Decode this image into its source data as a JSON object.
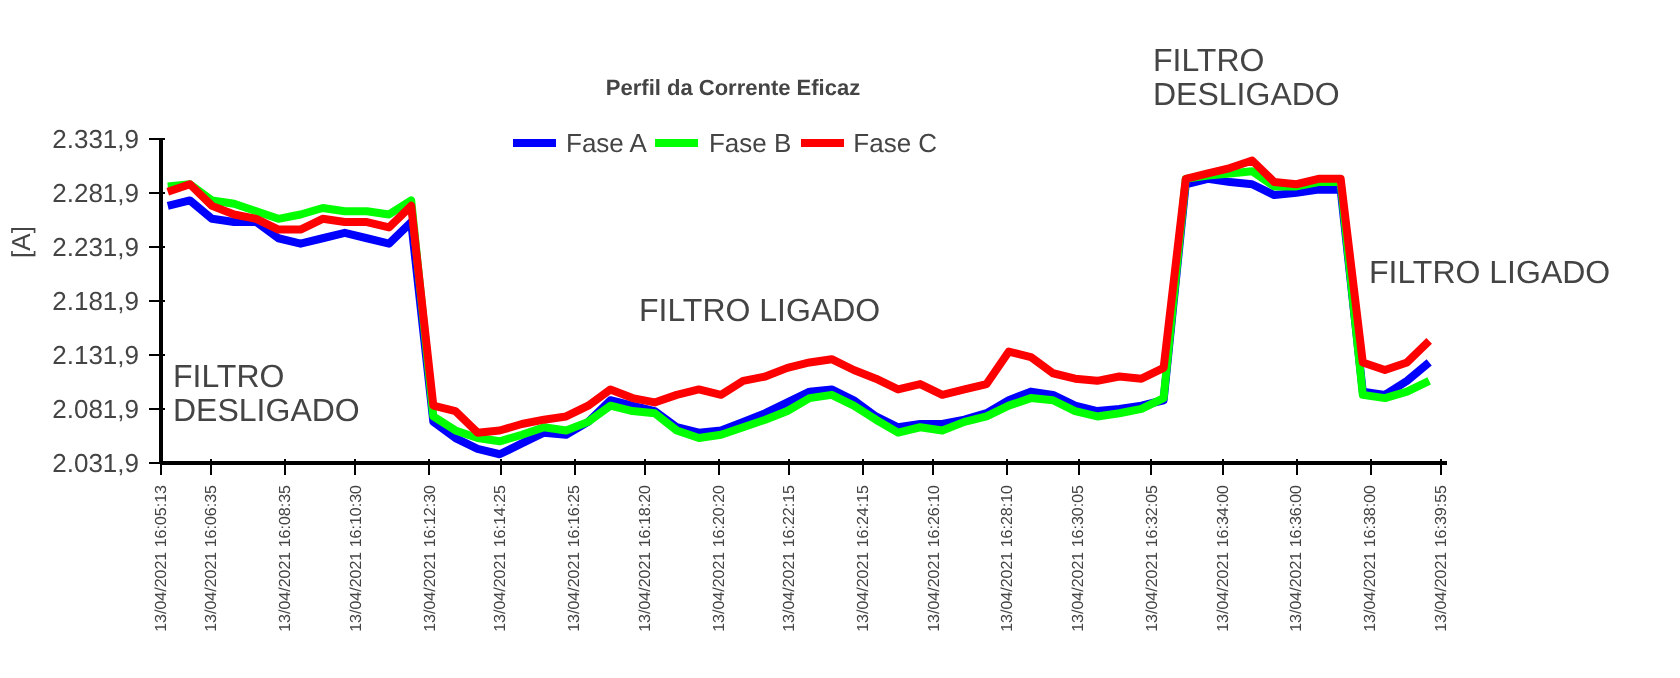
{
  "chart_data": {
    "type": "line",
    "title": "Perfil da Corrente Eficaz",
    "ylabel": "[A]",
    "annotations": [
      "FILTRO\nDESLIGADO",
      "FILTRO LIGADO",
      "FILTRO\nDESLIGADO",
      "FILTRO LIGADO"
    ],
    "x": [
      "2021-04-13T16:05:24",
      "2021-04-13T16:06:00",
      "2021-04-13T16:06:36",
      "2021-04-13T16:07:12",
      "2021-04-13T16:07:48",
      "2021-04-13T16:08:24",
      "2021-04-13T16:09:00",
      "2021-04-13T16:09:36",
      "2021-04-13T16:10:12",
      "2021-04-13T16:10:48",
      "2021-04-13T16:11:24",
      "2021-04-13T16:12:00",
      "2021-04-13T16:12:36",
      "2021-04-13T16:13:12",
      "2021-04-13T16:13:48",
      "2021-04-13T16:14:24",
      "2021-04-13T16:15:00",
      "2021-04-13T16:15:36",
      "2021-04-13T16:16:12",
      "2021-04-13T16:16:48",
      "2021-04-13T16:17:24",
      "2021-04-13T16:18:00",
      "2021-04-13T16:18:36",
      "2021-04-13T16:19:12",
      "2021-04-13T16:19:48",
      "2021-04-13T16:20:24",
      "2021-04-13T16:21:00",
      "2021-04-13T16:21:36",
      "2021-04-13T16:22:12",
      "2021-04-13T16:22:48",
      "2021-04-13T16:23:24",
      "2021-04-13T16:24:00",
      "2021-04-13T16:24:36",
      "2021-04-13T16:25:12",
      "2021-04-13T16:25:48",
      "2021-04-13T16:26:24",
      "2021-04-13T16:27:00",
      "2021-04-13T16:27:36",
      "2021-04-13T16:28:12",
      "2021-04-13T16:28:48",
      "2021-04-13T16:29:24",
      "2021-04-13T16:30:00",
      "2021-04-13T16:30:36",
      "2021-04-13T16:31:12",
      "2021-04-13T16:31:48",
      "2021-04-13T16:32:24",
      "2021-04-13T16:33:00",
      "2021-04-13T16:33:36",
      "2021-04-13T16:34:12",
      "2021-04-13T16:34:48",
      "2021-04-13T16:35:24",
      "2021-04-13T16:36:00",
      "2021-04-13T16:36:36",
      "2021-04-13T16:37:12",
      "2021-04-13T16:37:48",
      "2021-04-13T16:38:24",
      "2021-04-13T16:39:00",
      "2021-04-13T16:39:36"
    ],
    "series": [
      {
        "name": "Fase A",
        "color": "#0000ff",
        "values": [
          2270,
          2275,
          2258,
          2255,
          2255,
          2240,
          2235,
          2240,
          2245,
          2240,
          2235,
          2255,
          2070,
          2055,
          2045,
          2040,
          2050,
          2060,
          2058,
          2070,
          2090,
          2085,
          2080,
          2065,
          2060,
          2062,
          2070,
          2078,
          2088,
          2098,
          2100,
          2090,
          2075,
          2065,
          2068,
          2068,
          2072,
          2078,
          2090,
          2098,
          2095,
          2085,
          2080,
          2082,
          2085,
          2090,
          2290,
          2295,
          2292,
          2290,
          2280,
          2282,
          2285,
          2285,
          2098,
          2095,
          2108,
          2125
        ]
      },
      {
        "name": "Fase B",
        "color": "#00ff00",
        "values": [
          2288,
          2290,
          2275,
          2272,
          2265,
          2258,
          2262,
          2268,
          2265,
          2265,
          2262,
          2275,
          2075,
          2062,
          2055,
          2052,
          2058,
          2065,
          2062,
          2070,
          2085,
          2080,
          2078,
          2062,
          2055,
          2058,
          2065,
          2072,
          2080,
          2092,
          2095,
          2085,
          2072,
          2060,
          2065,
          2062,
          2070,
          2075,
          2085,
          2092,
          2090,
          2080,
          2075,
          2078,
          2082,
          2092,
          2295,
          2298,
          2300,
          2302,
          2288,
          2288,
          2292,
          2292,
          2095,
          2092,
          2098,
          2108
        ]
      },
      {
        "name": "Fase C",
        "color": "#ff0000",
        "values": [
          2283,
          2290,
          2270,
          2262,
          2258,
          2248,
          2248,
          2258,
          2255,
          2255,
          2250,
          2270,
          2085,
          2080,
          2060,
          2062,
          2068,
          2072,
          2075,
          2085,
          2100,
          2092,
          2088,
          2095,
          2100,
          2095,
          2108,
          2112,
          2120,
          2125,
          2128,
          2118,
          2110,
          2100,
          2105,
          2095,
          2100,
          2105,
          2135,
          2130,
          2115,
          2110,
          2108,
          2112,
          2110,
          2120,
          2295,
          2300,
          2305,
          2312,
          2292,
          2290,
          2295,
          2295,
          2125,
          2118,
          2125,
          2145
        ]
      }
    ],
    "xlim": [
      "2021-04-13T16:05:13",
      "2021-04-13T16:40:05"
    ],
    "ylim": [
      2031.9,
      2331.9
    ],
    "xticks": [
      {
        "value": "2021-04-13T16:05:13",
        "label": "13/04/2021 16:05:13"
      },
      {
        "value": "2021-04-13T16:06:35",
        "label": "13/04/2021 16:06:35"
      },
      {
        "value": "2021-04-13T16:08:35",
        "label": "13/04/2021 16:08:35"
      },
      {
        "value": "2021-04-13T16:10:30",
        "label": "13/04/2021 16:10:30"
      },
      {
        "value": "2021-04-13T16:12:30",
        "label": "13/04/2021 16:12:30"
      },
      {
        "value": "2021-04-13T16:14:25",
        "label": "13/04/2021 16:14:25"
      },
      {
        "value": "2021-04-13T16:16:25",
        "label": "13/04/2021 16:16:25"
      },
      {
        "value": "2021-04-13T16:18:20",
        "label": "13/04/2021 16:18:20"
      },
      {
        "value": "2021-04-13T16:20:20",
        "label": "13/04/2021 16:20:20"
      },
      {
        "value": "2021-04-13T16:22:15",
        "label": "13/04/2021 16:22:15"
      },
      {
        "value": "2021-04-13T16:24:15",
        "label": "13/04/2021 16:24:15"
      },
      {
        "value": "2021-04-13T16:26:10",
        "label": "13/04/2021 16:26:10"
      },
      {
        "value": "2021-04-13T16:28:10",
        "label": "13/04/2021 16:28:10"
      },
      {
        "value": "2021-04-13T16:30:05",
        "label": "13/04/2021 16:30:05"
      },
      {
        "value": "2021-04-13T16:32:05",
        "label": "13/04/2021 16:32:05"
      },
      {
        "value": "2021-04-13T16:34:00",
        "label": "13/04/2021 16:34:00"
      },
      {
        "value": "2021-04-13T16:36:00",
        "label": "13/04/2021 16:36:00"
      },
      {
        "value": "2021-04-13T16:38:00",
        "label": "13/04/2021 16:38:00"
      },
      {
        "value": "2021-04-13T16:39:55",
        "label": "13/04/2021 16:39:55"
      }
    ],
    "yticks": [
      {
        "value": 2031.9,
        "label": "2.031,9"
      },
      {
        "value": 2081.9,
        "label": "2.081,9"
      },
      {
        "value": 2131.9,
        "label": "2.131,9"
      },
      {
        "value": 2181.9,
        "label": "2.181,9"
      },
      {
        "value": 2231.9,
        "label": "2.231,9"
      },
      {
        "value": 2281.9,
        "label": "2.281,9"
      },
      {
        "value": 2331.9,
        "label": "2.331,9"
      }
    ],
    "grid": false,
    "legend": "top",
    "marker": "none",
    "line_style": "solid"
  }
}
